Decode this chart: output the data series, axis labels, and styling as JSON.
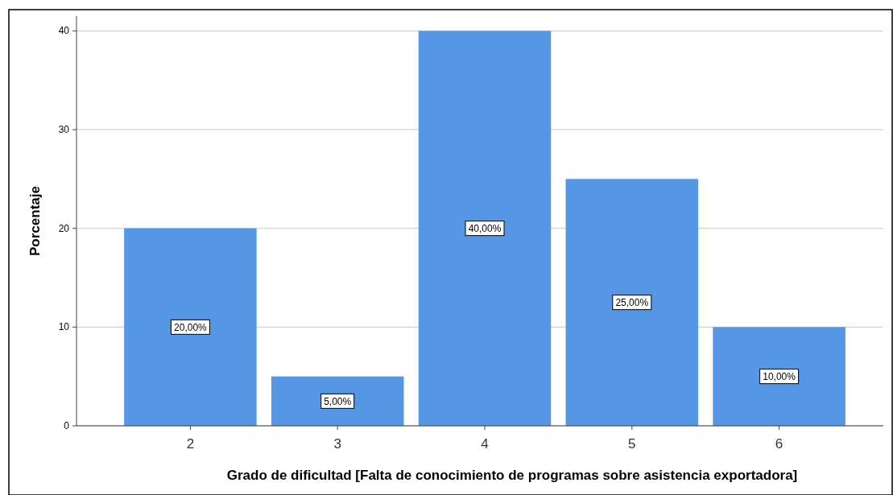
{
  "chart_data": {
    "type": "bar",
    "xlabel": "Grado de dificultad [Falta de conocimiento de programas sobre asistencia exportadora]",
    "ylabel": "Porcentaje",
    "categories": [
      "2",
      "3",
      "4",
      "5",
      "6"
    ],
    "values": [
      20,
      5,
      40,
      25,
      10
    ],
    "value_labels": [
      "20,00%",
      "5,00%",
      "40,00%",
      "25,00%",
      "10,00%"
    ],
    "color": "#5597e4",
    "ylim": [
      0,
      41.5
    ],
    "yticks": [
      0,
      10,
      20,
      30,
      40
    ],
    "grid": "y"
  }
}
